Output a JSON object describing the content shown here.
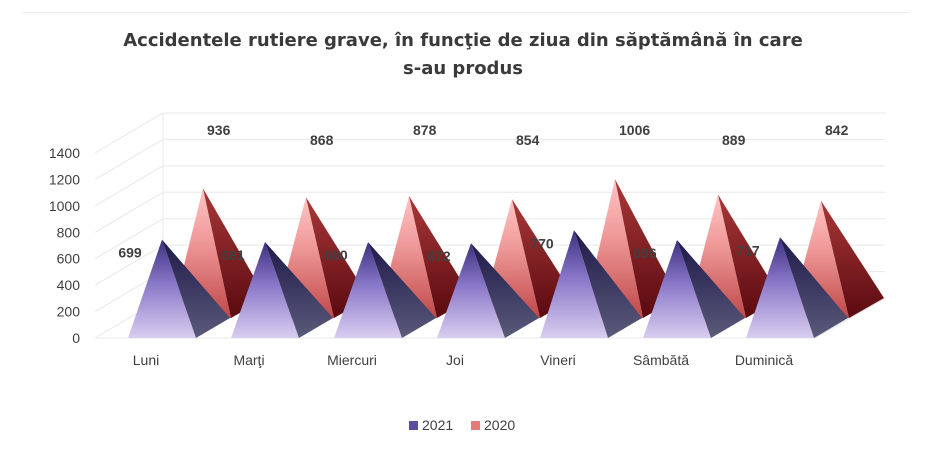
{
  "chart_data": {
    "type": "bar",
    "subtype": "3d-pyramid",
    "title_lines": [
      "Accidentele rutiere grave, în funcţie de ziua din săptămână în care",
      "s-au produs"
    ],
    "categories": [
      "Luni",
      "Marţi",
      "Miercuri",
      "Joi",
      "Vineri",
      "Sâmbătă",
      "Duminică"
    ],
    "series": [
      {
        "name": "2021",
        "values": [
          699,
          681,
          680,
          672,
          770,
          696,
          717
        ],
        "color": "#5b4ea0"
      },
      {
        "name": "2020",
        "values": [
          936,
          868,
          878,
          854,
          1006,
          889,
          842
        ],
        "color": "#e47a7a"
      }
    ],
    "yticks": [
      "0",
      "200",
      "400",
      "600",
      "800",
      "1000",
      "1200",
      "1400"
    ],
    "ylim": [
      0,
      1400
    ],
    "grid": true,
    "legend_position": "bottom"
  }
}
